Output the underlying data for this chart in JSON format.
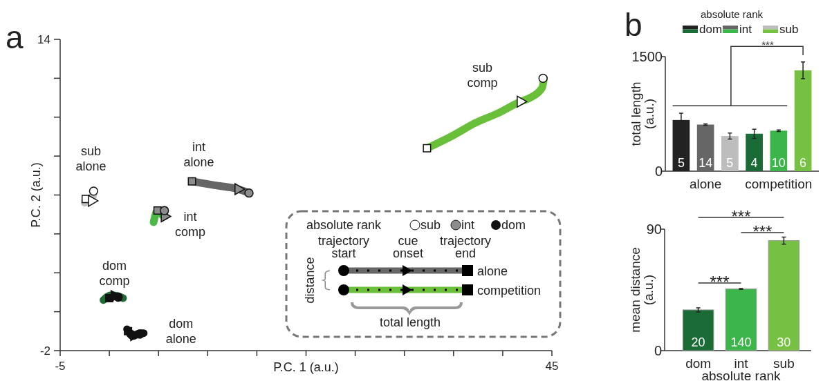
{
  "chart_data": [
    {
      "type": "line",
      "title": "a",
      "xlabel": "P.C. 1 (a.u.)",
      "ylabel": "P.C. 2 (a.u.)",
      "xlim": [
        -5,
        45
      ],
      "ylim": [
        -2,
        14
      ],
      "xticks": [
        -5,
        {
          "value": 0,
          "label": null
        },
        {
          "value": 5,
          "label": null
        },
        {
          "value": 10,
          "label": null
        },
        {
          "value": 15,
          "label": null
        },
        {
          "value": 20,
          "label": null
        },
        {
          "value": 25,
          "label": null
        },
        {
          "value": 30,
          "label": null
        },
        {
          "value": 35,
          "label": null
        },
        {
          "value": 40,
          "label": null
        },
        45
      ],
      "yticks": [
        -2,
        {
          "value": 0,
          "label": null
        },
        {
          "value": 2,
          "label": null
        },
        {
          "value": 4,
          "label": null
        },
        {
          "value": 6,
          "label": null
        },
        {
          "value": 8,
          "label": null
        },
        {
          "value": 10,
          "label": null
        },
        {
          "value": 12,
          "label": null
        },
        14
      ],
      "series": [
        {
          "name": "sub comp",
          "color": "#6abf3a",
          "x": [
            32.3,
            35.1,
            37.2,
            39.5,
            41.8,
            42.8,
            44.0,
            44.2
          ],
          "values": [
            8.4,
            9.1,
            9.7,
            10.2,
            10.8,
            11.0,
            11.5,
            12.0
          ]
        },
        {
          "name": "int alone",
          "color": "#666666",
          "x": [
            8.4,
            10.7,
            13.1,
            14.2
          ],
          "values": [
            6.7,
            6.5,
            6.3,
            6.1
          ]
        },
        {
          "name": "sub alone",
          "color": "#c0c0c0",
          "x": [
            -2.5,
            -2.4,
            -1.8,
            -1.6
          ],
          "values": [
            5.6,
            5.8,
            5.7,
            6.2
          ]
        },
        {
          "name": "int comp",
          "color": "#4cb848",
          "x": [
            4.5,
            4.9,
            5.6,
            5.6
          ],
          "values": [
            4.6,
            5.2,
            4.9,
            5.2
          ]
        },
        {
          "name": "dom comp",
          "color": "#1e6b35",
          "x": [
            -0.6,
            0.2,
            0.9,
            1.4
          ],
          "values": [
            0.6,
            0.85,
            0.8,
            0.7
          ]
        },
        {
          "name": "dom alone",
          "color": "#111111",
          "x": [
            1.8,
            2.4,
            3.1,
            3.5
          ],
          "values": [
            -0.9,
            -1.25,
            -1.1,
            -1.1
          ]
        },
        {
          "type": "scatter",
          "marker": "square",
          "x": [
            32.3,
            8.4,
            -2.4,
            4.9,
            0.0,
            1.9
          ],
          "values": [
            8.4,
            6.7,
            5.8,
            5.2,
            0.7,
            -1.0
          ],
          "colors": [
            "#ffffff",
            "#8c8c8c",
            "#ffffff",
            "#8c8c8c",
            "#111111",
            "#111111"
          ]
        },
        {
          "type": "scatter",
          "marker": "triangle",
          "x": [
            41.8,
            13.1,
            -1.8,
            5.6,
            0.5,
            2.5
          ],
          "values": [
            10.8,
            6.3,
            5.7,
            4.9,
            0.8,
            -1.2
          ],
          "colors": [
            "#ffffff",
            "#8c8c8c",
            "#ffffff",
            "#8c8c8c",
            "#111111",
            "#111111"
          ]
        },
        {
          "type": "scatter",
          "marker": "circle",
          "x": [
            44.1,
            14.2,
            -1.6,
            5.6,
            0.9,
            3.1
          ],
          "values": [
            12.0,
            6.1,
            6.2,
            5.2,
            0.75,
            -1.15
          ],
          "colors": [
            "#ffffff",
            "#8c8c8c",
            "#ffffff",
            "#8c8c8c",
            "#111111",
            "#111111"
          ]
        }
      ],
      "annotations": [
        "absolute rank",
        "sub",
        "int",
        "dom",
        "trajectory start",
        "cue onset",
        "trajectory end",
        "alone",
        "competition",
        "distance",
        "total length"
      ]
    },
    {
      "type": "bar",
      "title": "b",
      "categories": [
        "alone",
        "competition"
      ],
      "ylabel": "total length (a.u.)",
      "ylim": [
        0,
        1500
      ],
      "yticks": [
        0,
        1500
      ],
      "legend": "top",
      "legend_title": "absolute rank",
      "series": [
        {
          "name": "dom",
          "colors": [
            "#222222",
            "#1a6b35"
          ],
          "values": [
            670,
            490
          ],
          "errors": [
            90,
            60
          ]
        },
        {
          "name": "int",
          "colors": [
            "#666666",
            "#3cb54a"
          ],
          "values": [
            610,
            530
          ],
          "errors": [
            10,
            10
          ]
        },
        {
          "name": "sub",
          "colors": [
            "#bdbdbd",
            "#76c043"
          ],
          "values": [
            460,
            1320
          ],
          "errors": [
            40,
            110
          ]
        }
      ],
      "annotations": [
        "***",
        "5",
        "14",
        "5",
        "4",
        "10",
        "6"
      ]
    },
    {
      "type": "bar",
      "categories": [
        "dom",
        "int",
        "sub"
      ],
      "values": [
        30.2,
        45.7,
        81.5
      ],
      "errors": [
        1.5,
        0.3,
        2.6
      ],
      "colors": [
        "#1a6b35",
        "#3cb54a",
        "#76c043"
      ],
      "xlabel": "absolute rank",
      "ylabel": "mean distance (a.u.)",
      "ylim": [
        0,
        90
      ],
      "yticks": [
        0,
        90
      ],
      "annotations": [
        "***",
        "***",
        "***",
        "20",
        "140",
        "30"
      ]
    }
  ]
}
